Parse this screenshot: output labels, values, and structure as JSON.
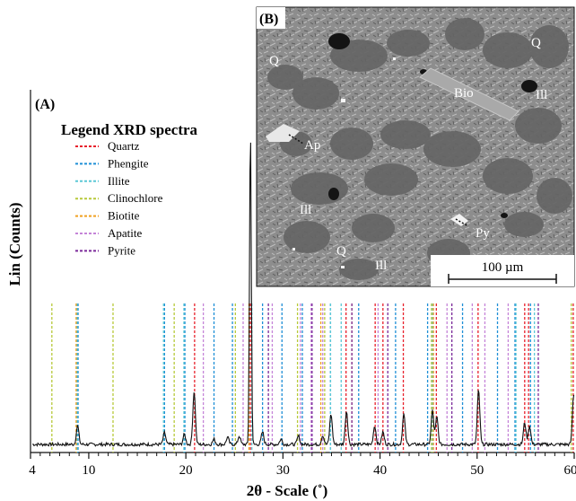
{
  "chart_data": {
    "type": "line",
    "panel_a_label": "(A)",
    "panel_b_label": "(B)",
    "xlabel": "2θ - Scale (˚)",
    "ylabel": "Lin (Counts)",
    "xlim": [
      4,
      60
    ],
    "xticks": [
      4,
      10,
      20,
      30,
      40,
      50,
      60
    ],
    "xtick_labels": [
      "4",
      "10",
      "20",
      "30",
      "40",
      "50",
      "60"
    ],
    "legend_title": "Legend XRD spectra",
    "legend_placement": "upper-left",
    "phases": [
      {
        "name": "Quartz",
        "color": "#e8212c",
        "positions": [
          20.9,
          26.65,
          36.5,
          39.5,
          40.3,
          42.4,
          45.8,
          50.1,
          54.9,
          55.3,
          59.9
        ]
      },
      {
        "name": "Phengite",
        "color": "#1f8fd6",
        "positions": [
          8.9,
          17.8,
          19.9,
          22.9,
          24.8,
          27.9,
          29.9,
          32.0,
          34.9,
          37.8,
          41.6,
          44.9,
          48.5,
          52.1,
          53.9,
          55.5
        ]
      },
      {
        "name": "Illite",
        "color": "#5cc8d6",
        "positions": [
          8.8,
          17.7,
          19.8,
          26.8,
          34.9,
          36.0,
          45.4,
          54.0,
          55.9
        ]
      },
      {
        "name": "Clinochlore",
        "color": "#b7c93a",
        "positions": [
          6.2,
          12.5,
          18.8,
          25.1,
          31.5,
          34.3,
          45.3,
          59.7
        ]
      },
      {
        "name": "Biotite",
        "color": "#f0a020",
        "positions": [
          8.7,
          26.5,
          33.9,
          37.1,
          45.5
        ]
      },
      {
        "name": "Apatite",
        "color": "#c584d8",
        "positions": [
          21.8,
          25.9,
          28.9,
          31.8,
          32.9,
          34.1,
          39.8,
          46.9,
          49.5,
          50.8,
          53.2
        ]
      },
      {
        "name": "Pyrite",
        "color": "#7b2a9a",
        "positions": [
          28.5,
          33.0,
          37.1,
          40.8,
          47.4,
          56.3
        ]
      }
    ],
    "spectrum_baseline": 14,
    "spectrum_peaks": [
      {
        "x": 8.85,
        "y": 72
      },
      {
        "x": 17.8,
        "y": 50
      },
      {
        "x": 19.85,
        "y": 45
      },
      {
        "x": 20.85,
        "y": 178
      },
      {
        "x": 22.9,
        "y": 30
      },
      {
        "x": 24.3,
        "y": 36
      },
      {
        "x": 25.5,
        "y": 40
      },
      {
        "x": 26.65,
        "y": 1000
      },
      {
        "x": 27.9,
        "y": 52
      },
      {
        "x": 29.8,
        "y": 30
      },
      {
        "x": 31.6,
        "y": 40
      },
      {
        "x": 34.1,
        "y": 42
      },
      {
        "x": 34.95,
        "y": 108
      },
      {
        "x": 36.55,
        "y": 118
      },
      {
        "x": 39.45,
        "y": 72
      },
      {
        "x": 40.3,
        "y": 52
      },
      {
        "x": 42.45,
        "y": 108
      },
      {
        "x": 45.4,
        "y": 118
      },
      {
        "x": 45.85,
        "y": 98
      },
      {
        "x": 50.15,
        "y": 182
      },
      {
        "x": 54.9,
        "y": 82
      },
      {
        "x": 55.4,
        "y": 72
      },
      {
        "x": 59.95,
        "y": 170
      }
    ]
  },
  "sem_image": {
    "labels": [
      "Q",
      "Q",
      "Bio",
      "Ill",
      "Ap",
      "Ill",
      "Py",
      "Q",
      "Ill"
    ],
    "scale_bar": "100 µm"
  }
}
